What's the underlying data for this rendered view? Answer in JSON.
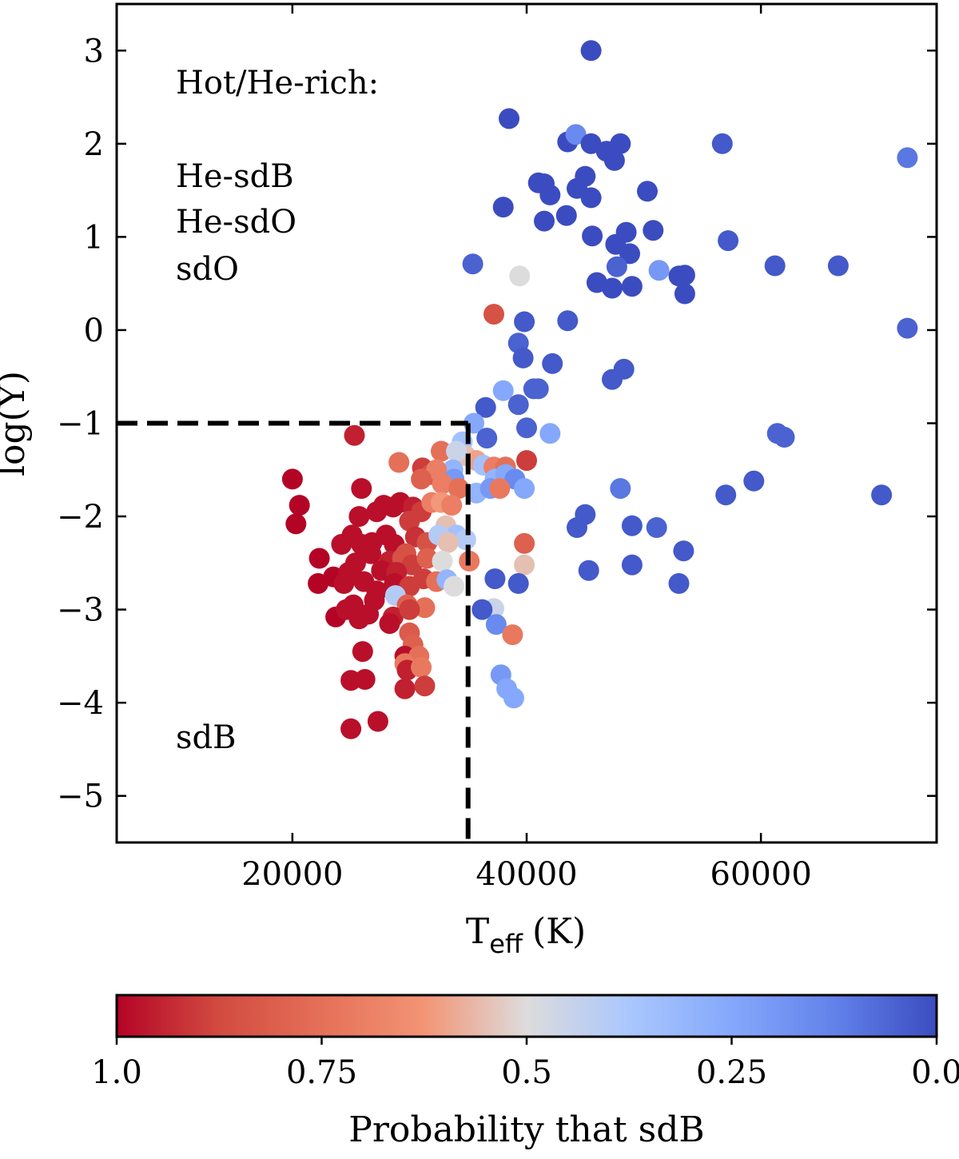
{
  "chart_data": {
    "type": "scatter",
    "xlabel": "T",
    "xlabel_sub": "eff",
    "xlabel_unit": "(K)",
    "ylabel": "log(Y)",
    "xlim": [
      5000,
      75000
    ],
    "ylim": [
      -5.5,
      3.5
    ],
    "xticks": [
      20000,
      40000,
      60000
    ],
    "xtick_labels": [
      "20000",
      "40000",
      "60000"
    ],
    "yticks": [
      3,
      2,
      1,
      0,
      -1,
      -2,
      -3,
      -4,
      -5
    ],
    "ytick_labels": [
      "3",
      "2",
      "1",
      "0",
      "−1",
      "−2",
      "−3",
      "−4",
      "−5"
    ],
    "boundary": {
      "teff": 35000,
      "logy": -1.0,
      "style": "dashed"
    },
    "annotations": {
      "hot_title": "Hot/He-rich:",
      "hot_classes": [
        "He-sdB",
        "He-sdO",
        "sdO"
      ],
      "cool_label": "sdB"
    },
    "colorbar": {
      "label": "Probability that sdB",
      "ticks": [
        1.0,
        0.75,
        0.5,
        0.25,
        0.0
      ],
      "tick_labels": [
        "1.0",
        "0.75",
        "0.5",
        "0.25",
        "0.0"
      ],
      "colormap": "coolwarm",
      "low_color": "#b40426",
      "mid_color": "#dddcdc",
      "high_color": "#3b4cc0"
    },
    "points": [
      [
        45500,
        3.0,
        0.0
      ],
      [
        38500,
        2.27,
        0.0
      ],
      [
        43500,
        2.02,
        0.0
      ],
      [
        44200,
        2.1,
        0.15
      ],
      [
        45500,
        2.0,
        0.0
      ],
      [
        46800,
        1.92,
        0.0
      ],
      [
        48000,
        2.0,
        0.0
      ],
      [
        47500,
        1.82,
        0.0
      ],
      [
        56700,
        2.0,
        0.03
      ],
      [
        72500,
        1.85,
        0.1
      ],
      [
        41500,
        1.57,
        0.0
      ],
      [
        41000,
        1.58,
        0.0
      ],
      [
        42000,
        1.45,
        0.0
      ],
      [
        44300,
        1.52,
        0.0
      ],
      [
        45000,
        1.65,
        0.0
      ],
      [
        45500,
        1.42,
        0.0
      ],
      [
        50300,
        1.49,
        0.0
      ],
      [
        38000,
        1.32,
        0.0
      ],
      [
        41500,
        1.17,
        0.0
      ],
      [
        43400,
        1.23,
        0.0
      ],
      [
        45600,
        1.01,
        0.0
      ],
      [
        47600,
        0.92,
        0.0
      ],
      [
        48500,
        1.05,
        0.0
      ],
      [
        50800,
        1.07,
        0.0
      ],
      [
        57200,
        0.96,
        0.03
      ],
      [
        48800,
        0.82,
        0.0
      ],
      [
        35400,
        0.71,
        0.05
      ],
      [
        47700,
        0.68,
        0.05
      ],
      [
        51300,
        0.64,
        0.2
      ],
      [
        53000,
        0.58,
        0.0
      ],
      [
        53500,
        0.59,
        0.0
      ],
      [
        39400,
        0.58,
        0.5
      ],
      [
        61200,
        0.69,
        0.03
      ],
      [
        66600,
        0.69,
        0.03
      ],
      [
        46000,
        0.51,
        0.0
      ],
      [
        47300,
        0.45,
        0.0
      ],
      [
        49000,
        0.47,
        0.0
      ],
      [
        53500,
        0.39,
        0.0
      ],
      [
        37200,
        0.17,
        0.85
      ],
      [
        39800,
        0.09,
        0.03
      ],
      [
        43500,
        0.1,
        0.03
      ],
      [
        72500,
        0.02,
        0.05
      ],
      [
        39300,
        -0.14,
        0.05
      ],
      [
        39700,
        -0.3,
        0.03
      ],
      [
        42200,
        -0.36,
        0.03
      ],
      [
        48300,
        -0.42,
        0.03
      ],
      [
        47300,
        -0.53,
        0.03
      ],
      [
        40600,
        -0.63,
        0.05
      ],
      [
        41000,
        -0.63,
        0.05
      ],
      [
        38000,
        -0.65,
        0.25
      ],
      [
        36500,
        -0.83,
        0.03
      ],
      [
        39300,
        -0.8,
        0.05
      ],
      [
        35500,
        -1.0,
        0.25
      ],
      [
        40000,
        -1.05,
        0.05
      ],
      [
        42000,
        -1.11,
        0.25
      ],
      [
        36600,
        -1.16,
        0.05
      ],
      [
        61400,
        -1.11,
        0.05
      ],
      [
        62000,
        -1.15,
        0.05
      ],
      [
        25300,
        -1.13,
        0.95
      ],
      [
        34500,
        -1.2,
        0.35
      ],
      [
        34800,
        -1.35,
        0.55
      ],
      [
        32700,
        -1.3,
        0.75
      ],
      [
        34000,
        -1.3,
        0.45
      ],
      [
        33700,
        -1.5,
        0.3
      ],
      [
        35700,
        -1.4,
        0.6
      ],
      [
        36300,
        -1.45,
        0.35
      ],
      [
        37200,
        -1.47,
        0.7
      ],
      [
        38200,
        -1.47,
        0.75
      ],
      [
        40000,
        -1.4,
        0.9
      ],
      [
        29100,
        -1.42,
        0.75
      ],
      [
        31100,
        -1.48,
        0.9
      ],
      [
        31800,
        -1.55,
        0.85
      ],
      [
        32300,
        -1.5,
        0.7
      ],
      [
        33800,
        -1.6,
        0.2
      ],
      [
        37300,
        -1.6,
        0.3
      ],
      [
        38200,
        -1.55,
        0.25
      ],
      [
        39000,
        -1.6,
        0.15
      ],
      [
        39800,
        -1.7,
        0.25
      ],
      [
        20000,
        -1.6,
        1.0
      ],
      [
        25900,
        -1.7,
        0.98
      ],
      [
        31000,
        -1.6,
        0.8
      ],
      [
        32800,
        -1.65,
        0.7
      ],
      [
        34200,
        -1.7,
        0.75
      ],
      [
        35700,
        -1.75,
        0.3
      ],
      [
        36900,
        -1.7,
        0.2
      ],
      [
        37700,
        -1.7,
        0.72
      ],
      [
        48000,
        -1.7,
        0.1
      ],
      [
        57000,
        -1.77,
        0.03
      ],
      [
        59400,
        -1.62,
        0.03
      ],
      [
        70300,
        -1.77,
        0.03
      ],
      [
        20600,
        -1.88,
        1.0
      ],
      [
        27800,
        -1.88,
        0.98
      ],
      [
        29200,
        -1.85,
        0.98
      ],
      [
        30300,
        -1.9,
        0.95
      ],
      [
        31000,
        -1.95,
        0.9
      ],
      [
        31900,
        -1.85,
        0.7
      ],
      [
        32700,
        -1.85,
        0.62
      ],
      [
        33600,
        -1.88,
        0.7
      ],
      [
        20300,
        -2.08,
        1.0
      ],
      [
        25700,
        -2.0,
        0.98
      ],
      [
        27200,
        -1.95,
        0.98
      ],
      [
        28600,
        -1.9,
        0.98
      ],
      [
        30000,
        -2.05,
        0.9
      ],
      [
        33100,
        -2.1,
        0.55
      ],
      [
        34000,
        -2.2,
        0.35
      ],
      [
        45000,
        -1.98,
        0.03
      ],
      [
        44300,
        -2.12,
        0.03
      ],
      [
        49000,
        -2.1,
        0.03
      ],
      [
        51100,
        -2.12,
        0.05
      ],
      [
        25100,
        -2.2,
        0.98
      ],
      [
        26800,
        -2.28,
        0.98
      ],
      [
        28000,
        -2.2,
        0.98
      ],
      [
        30500,
        -2.22,
        0.92
      ],
      [
        31500,
        -2.28,
        0.85
      ],
      [
        32500,
        -2.2,
        0.4
      ],
      [
        34800,
        -2.25,
        0.4
      ],
      [
        24200,
        -2.3,
        0.98
      ],
      [
        25900,
        -2.3,
        0.98
      ],
      [
        28700,
        -2.3,
        0.98
      ],
      [
        29700,
        -2.4,
        0.85
      ],
      [
        33300,
        -2.28,
        0.55
      ],
      [
        39800,
        -2.29,
        0.8
      ],
      [
        22300,
        -2.45,
        1.0
      ],
      [
        25400,
        -2.5,
        0.98
      ],
      [
        26700,
        -2.4,
        0.98
      ],
      [
        28300,
        -2.48,
        0.95
      ],
      [
        29400,
        -2.45,
        0.85
      ],
      [
        30200,
        -2.52,
        0.9
      ],
      [
        31500,
        -2.45,
        0.8
      ],
      [
        32800,
        -2.48,
        0.5
      ],
      [
        35100,
        -2.48,
        0.72
      ],
      [
        53400,
        -2.37,
        0.03
      ],
      [
        23500,
        -2.65,
        1.0
      ],
      [
        24800,
        -2.6,
        0.98
      ],
      [
        26100,
        -2.7,
        0.98
      ],
      [
        27600,
        -2.58,
        0.98
      ],
      [
        28900,
        -2.6,
        0.95
      ],
      [
        31200,
        -2.67,
        0.9
      ],
      [
        32300,
        -2.7,
        0.75
      ],
      [
        33200,
        -2.68,
        0.3
      ],
      [
        37300,
        -2.67,
        0.03
      ],
      [
        39800,
        -2.52,
        0.55
      ],
      [
        45300,
        -2.58,
        0.03
      ],
      [
        49000,
        -2.52,
        0.03
      ],
      [
        22200,
        -2.72,
        1.0
      ],
      [
        24400,
        -2.72,
        0.98
      ],
      [
        27200,
        -2.8,
        0.98
      ],
      [
        28700,
        -2.72,
        0.98
      ],
      [
        30000,
        -2.75,
        0.9
      ],
      [
        33800,
        -2.75,
        0.5
      ],
      [
        39300,
        -2.72,
        0.03
      ],
      [
        53000,
        -2.72,
        0.03
      ],
      [
        25200,
        -2.95,
        0.98
      ],
      [
        27000,
        -2.9,
        0.98
      ],
      [
        28800,
        -2.85,
        0.4
      ],
      [
        29800,
        -2.95,
        0.8
      ],
      [
        31300,
        -2.98,
        0.75
      ],
      [
        37200,
        -2.99,
        0.45
      ],
      [
        36200,
        -3.0,
        0.03
      ],
      [
        23700,
        -3.08,
        1.0
      ],
      [
        24600,
        -3.0,
        0.98
      ],
      [
        26500,
        -3.05,
        0.98
      ],
      [
        28600,
        -3.08,
        0.95
      ],
      [
        30000,
        -3.0,
        0.9
      ],
      [
        25700,
        -3.1,
        0.98
      ],
      [
        28300,
        -3.15,
        0.98
      ],
      [
        30000,
        -3.25,
        0.82
      ],
      [
        37400,
        -3.16,
        0.15
      ],
      [
        38800,
        -3.27,
        0.72
      ],
      [
        30300,
        -3.38,
        0.8
      ],
      [
        26000,
        -3.45,
        0.98
      ],
      [
        29600,
        -3.5,
        0.98
      ],
      [
        30800,
        -3.5,
        0.75
      ],
      [
        29600,
        -3.58,
        0.72
      ],
      [
        29800,
        -3.65,
        0.95
      ],
      [
        31000,
        -3.62,
        0.72
      ],
      [
        37800,
        -3.7,
        0.2
      ],
      [
        25000,
        -3.76,
        0.98
      ],
      [
        26200,
        -3.75,
        0.98
      ],
      [
        29600,
        -3.85,
        0.95
      ],
      [
        31300,
        -3.82,
        0.9
      ],
      [
        38300,
        -3.85,
        0.25
      ],
      [
        38900,
        -3.95,
        0.25
      ],
      [
        25000,
        -4.28,
        0.98
      ],
      [
        27300,
        -4.2,
        0.98
      ]
    ]
  }
}
